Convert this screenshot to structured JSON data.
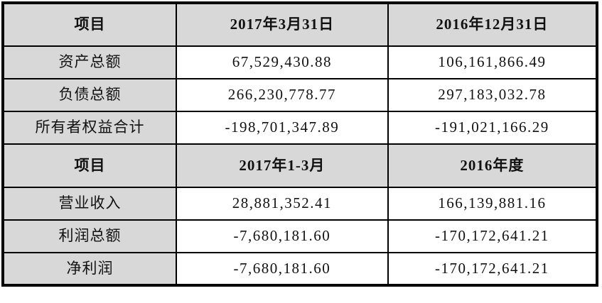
{
  "colors": {
    "header_bg": "#d8d8d8",
    "label_column_bg": "#d8d8d8",
    "cell_bg": "#ffffff",
    "border": "#000000",
    "text": "#111111"
  },
  "table": {
    "sections": [
      {
        "header": [
          "项目",
          "2017年3月31日",
          "2016年12月31日"
        ],
        "rows": [
          [
            "资产总额",
            "67,529,430.88",
            "106,161,866.49"
          ],
          [
            "负债总额",
            "266,230,778.77",
            "297,183,032.78"
          ],
          [
            "所有者权益合计",
            "-198,701,347.89",
            "-191,021,166.29"
          ]
        ]
      },
      {
        "header": [
          "项目",
          "2017年1-3月",
          "2016年度"
        ],
        "rows": [
          [
            "营业收入",
            "28,881,352.41",
            "166,139,881.16"
          ],
          [
            "利润总额",
            "-7,680,181.60",
            "-170,172,641.21"
          ],
          [
            "净利润",
            "-7,680,181.60",
            "-170,172,641.21"
          ]
        ]
      }
    ]
  }
}
